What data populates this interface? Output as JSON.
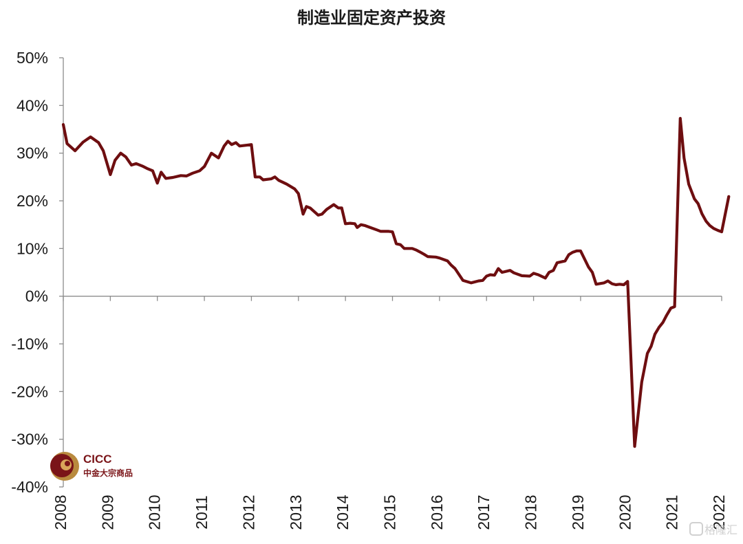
{
  "chart_data": {
    "type": "line",
    "title": "制造业固定资产投资",
    "xlabel": "",
    "ylabel": "",
    "ylim": [
      -40,
      50
    ],
    "ytick_labels": [
      "50%",
      "40%",
      "30%",
      "20%",
      "10%",
      "0%",
      "-10%",
      "-20%",
      "-30%",
      "-40%"
    ],
    "xtick_labels": [
      "2008",
      "2009",
      "2010",
      "2011",
      "2012",
      "2013",
      "2014",
      "2015",
      "2016",
      "2017",
      "2018",
      "2019",
      "2020",
      "2021",
      "2022"
    ],
    "grid": false,
    "legend": "none",
    "line_color": "#6e0e10",
    "series": [
      {
        "values": [
          [
            2008.0,
            36.0
          ],
          [
            2008.08,
            32.0
          ],
          [
            2008.25,
            30.5
          ],
          [
            2008.42,
            32.3
          ],
          [
            2008.58,
            33.4
          ],
          [
            2008.75,
            32.2
          ],
          [
            2008.85,
            30.5
          ],
          [
            2009.0,
            25.5
          ],
          [
            2009.1,
            28.5
          ],
          [
            2009.22,
            30.0
          ],
          [
            2009.33,
            29.2
          ],
          [
            2009.45,
            27.5
          ],
          [
            2009.55,
            27.8
          ],
          [
            2009.68,
            27.3
          ],
          [
            2009.78,
            26.8
          ],
          [
            2009.9,
            26.3
          ],
          [
            2010.0,
            23.7
          ],
          [
            2010.08,
            26.0
          ],
          [
            2010.18,
            24.7
          ],
          [
            2010.33,
            24.9
          ],
          [
            2010.5,
            25.3
          ],
          [
            2010.62,
            25.2
          ],
          [
            2010.75,
            25.8
          ],
          [
            2010.9,
            26.3
          ],
          [
            2011.0,
            27.2
          ],
          [
            2011.15,
            30.0
          ],
          [
            2011.3,
            29.0
          ],
          [
            2011.42,
            31.5
          ],
          [
            2011.5,
            32.5
          ],
          [
            2011.58,
            31.8
          ],
          [
            2011.67,
            32.2
          ],
          [
            2011.75,
            31.5
          ],
          [
            2011.92,
            31.7
          ],
          [
            2012.0,
            31.8
          ],
          [
            2012.08,
            25.0
          ],
          [
            2012.18,
            25.0
          ],
          [
            2012.25,
            24.4
          ],
          [
            2012.42,
            24.6
          ],
          [
            2012.5,
            25.0
          ],
          [
            2012.58,
            24.3
          ],
          [
            2012.75,
            23.5
          ],
          [
            2012.92,
            22.5
          ],
          [
            2013.0,
            21.5
          ],
          [
            2013.1,
            17.2
          ],
          [
            2013.17,
            18.8
          ],
          [
            2013.25,
            18.5
          ],
          [
            2013.42,
            17.0
          ],
          [
            2013.5,
            17.2
          ],
          [
            2013.6,
            18.2
          ],
          [
            2013.75,
            19.2
          ],
          [
            2013.85,
            18.5
          ],
          [
            2013.92,
            18.5
          ],
          [
            2014.0,
            15.2
          ],
          [
            2014.1,
            15.3
          ],
          [
            2014.2,
            15.2
          ],
          [
            2014.25,
            14.4
          ],
          [
            2014.33,
            15.0
          ],
          [
            2014.42,
            14.8
          ],
          [
            2014.5,
            14.5
          ],
          [
            2014.67,
            13.9
          ],
          [
            2014.75,
            13.6
          ],
          [
            2014.92,
            13.6
          ],
          [
            2015.0,
            13.5
          ],
          [
            2015.08,
            11.0
          ],
          [
            2015.17,
            10.8
          ],
          [
            2015.25,
            10.0
          ],
          [
            2015.42,
            10.0
          ],
          [
            2015.5,
            9.7
          ],
          [
            2015.58,
            9.3
          ],
          [
            2015.67,
            8.8
          ],
          [
            2015.75,
            8.3
          ],
          [
            2015.92,
            8.2
          ],
          [
            2016.0,
            8.0
          ],
          [
            2016.17,
            7.4
          ],
          [
            2016.25,
            6.5
          ],
          [
            2016.33,
            5.8
          ],
          [
            2016.5,
            3.3
          ],
          [
            2016.67,
            2.8
          ],
          [
            2016.83,
            3.2
          ],
          [
            2016.92,
            3.3
          ],
          [
            2017.0,
            4.2
          ],
          [
            2017.08,
            4.5
          ],
          [
            2017.17,
            4.4
          ],
          [
            2017.25,
            5.8
          ],
          [
            2017.33,
            5.0
          ],
          [
            2017.5,
            5.4
          ],
          [
            2017.58,
            4.9
          ],
          [
            2017.75,
            4.3
          ],
          [
            2017.92,
            4.2
          ],
          [
            2018.0,
            4.8
          ],
          [
            2018.1,
            4.5
          ],
          [
            2018.25,
            3.8
          ],
          [
            2018.33,
            5.0
          ],
          [
            2018.42,
            5.4
          ],
          [
            2018.5,
            7.0
          ],
          [
            2018.67,
            7.4
          ],
          [
            2018.75,
            8.7
          ],
          [
            2018.83,
            9.2
          ],
          [
            2018.92,
            9.5
          ],
          [
            2019.0,
            9.5
          ],
          [
            2019.17,
            6.1
          ],
          [
            2019.25,
            5.0
          ],
          [
            2019.33,
            2.5
          ],
          [
            2019.5,
            2.8
          ],
          [
            2019.58,
            3.2
          ],
          [
            2019.67,
            2.6
          ],
          [
            2019.75,
            2.4
          ],
          [
            2019.83,
            2.5
          ],
          [
            2019.92,
            2.4
          ],
          [
            2020.0,
            3.1
          ],
          [
            2020.15,
            -31.5
          ],
          [
            2020.3,
            -18.0
          ],
          [
            2020.42,
            -12.0
          ],
          [
            2020.5,
            -10.5
          ],
          [
            2020.58,
            -8.0
          ],
          [
            2020.67,
            -6.5
          ],
          [
            2020.75,
            -5.5
          ],
          [
            2020.83,
            -4.0
          ],
          [
            2020.92,
            -2.5
          ],
          [
            2021.0,
            -2.2
          ],
          [
            2021.12,
            37.3
          ],
          [
            2021.2,
            29.0
          ],
          [
            2021.3,
            23.5
          ],
          [
            2021.42,
            20.4
          ],
          [
            2021.5,
            19.4
          ],
          [
            2021.58,
            17.3
          ],
          [
            2021.67,
            15.7
          ],
          [
            2021.75,
            14.8
          ],
          [
            2021.83,
            14.2
          ],
          [
            2021.92,
            13.8
          ],
          [
            2022.0,
            13.5
          ],
          [
            2022.15,
            20.9
          ]
        ]
      }
    ]
  },
  "logo": {
    "name": "CICC",
    "subtitle": "中金大宗商品"
  },
  "watermark": {
    "text": "格隆汇",
    "icon": "gelonghui-logo-icon"
  }
}
